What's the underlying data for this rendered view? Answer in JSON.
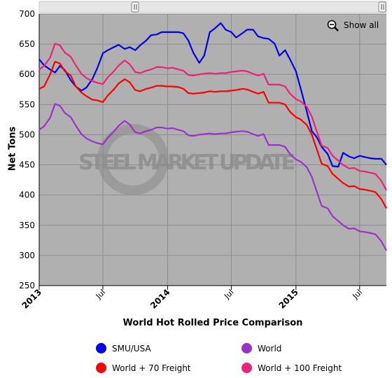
{
  "chart_data": {
    "type": "line",
    "title": "World Hot Rolled Price Comparison",
    "xlabel": "",
    "ylabel": "Net Tons",
    "ylim": [
      250,
      700
    ],
    "yticks": [
      250,
      300,
      350,
      400,
      450,
      500,
      550,
      600,
      650,
      700
    ],
    "x_start": "2013-01-01",
    "x_end": "2015-09-15",
    "xticks": [
      {
        "date": "2013-01-01",
        "label": "2013",
        "bold": true
      },
      {
        "date": "2013-07-01",
        "label": "Jul",
        "bold": false
      },
      {
        "date": "2014-01-01",
        "label": "2014",
        "bold": true
      },
      {
        "date": "2014-07-01",
        "label": "Jul",
        "bold": false
      },
      {
        "date": "2015-01-01",
        "label": "2015",
        "bold": true
      },
      {
        "date": "2015-07-01",
        "label": "Jul",
        "bold": false
      }
    ],
    "grid": true,
    "plot_background": "#b0b0b0",
    "watermark": "STEEL MARKET UPDATE",
    "series": [
      {
        "name": "SMU/USA",
        "color": "#0000ee",
        "points": [
          [
            "2013-01-01",
            625
          ],
          [
            "2013-01-15",
            615
          ],
          [
            "2013-02-01",
            608
          ],
          [
            "2013-02-15",
            603
          ],
          [
            "2013-03-01",
            614
          ],
          [
            "2013-03-15",
            607
          ],
          [
            "2013-04-01",
            590
          ],
          [
            "2013-04-15",
            580
          ],
          [
            "2013-05-01",
            573
          ],
          [
            "2013-05-15",
            578
          ],
          [
            "2013-06-01",
            592
          ],
          [
            "2013-06-15",
            610
          ],
          [
            "2013-07-01",
            635
          ],
          [
            "2013-07-15",
            640
          ],
          [
            "2013-08-01",
            645
          ],
          [
            "2013-08-15",
            649
          ],
          [
            "2013-09-01",
            642
          ],
          [
            "2013-09-15",
            645
          ],
          [
            "2013-10-01",
            640
          ],
          [
            "2013-10-15",
            648
          ],
          [
            "2013-11-01",
            656
          ],
          [
            "2013-11-15",
            665
          ],
          [
            "2013-12-01",
            666
          ],
          [
            "2013-12-15",
            670
          ],
          [
            "2014-01-01",
            670
          ],
          [
            "2014-01-15",
            670
          ],
          [
            "2014-02-01",
            670
          ],
          [
            "2014-02-15",
            668
          ],
          [
            "2014-03-01",
            656
          ],
          [
            "2014-03-15",
            636
          ],
          [
            "2014-04-01",
            619
          ],
          [
            "2014-04-15",
            631
          ],
          [
            "2014-05-01",
            670
          ],
          [
            "2014-05-15",
            676
          ],
          [
            "2014-06-01",
            685
          ],
          [
            "2014-06-15",
            674
          ],
          [
            "2014-07-01",
            670
          ],
          [
            "2014-07-15",
            661
          ],
          [
            "2014-08-01",
            668
          ],
          [
            "2014-08-15",
            674
          ],
          [
            "2014-09-01",
            674
          ],
          [
            "2014-09-15",
            663
          ],
          [
            "2014-10-01",
            660
          ],
          [
            "2014-10-15",
            659
          ],
          [
            "2014-11-01",
            651
          ],
          [
            "2014-11-15",
            631
          ],
          [
            "2014-12-01",
            640
          ],
          [
            "2014-12-15",
            625
          ],
          [
            "2015-01-01",
            605
          ],
          [
            "2015-01-15",
            575
          ],
          [
            "2015-02-01",
            538
          ],
          [
            "2015-02-15",
            506
          ],
          [
            "2015-03-01",
            496
          ],
          [
            "2015-03-15",
            480
          ],
          [
            "2015-04-01",
            468
          ],
          [
            "2015-04-15",
            448
          ],
          [
            "2015-05-01",
            447
          ],
          [
            "2015-05-15",
            470
          ],
          [
            "2015-06-01",
            464
          ],
          [
            "2015-06-15",
            461
          ],
          [
            "2015-07-01",
            465
          ],
          [
            "2015-07-15",
            463
          ],
          [
            "2015-08-01",
            461
          ],
          [
            "2015-08-15",
            460
          ],
          [
            "2015-09-01",
            460
          ],
          [
            "2015-09-15",
            450
          ]
        ]
      },
      {
        "name": "World + 70 Freight",
        "color": "#ff0000",
        "points": [
          [
            "2013-01-01",
            576
          ],
          [
            "2013-01-15",
            580
          ],
          [
            "2013-02-01",
            600
          ],
          [
            "2013-02-15",
            621
          ],
          [
            "2013-03-01",
            618
          ],
          [
            "2013-03-15",
            605
          ],
          [
            "2013-04-01",
            598
          ],
          [
            "2013-04-15",
            580
          ],
          [
            "2013-05-01",
            570
          ],
          [
            "2013-05-15",
            564
          ],
          [
            "2013-06-01",
            558
          ],
          [
            "2013-06-15",
            557
          ],
          [
            "2013-07-01",
            554
          ],
          [
            "2013-07-15",
            565
          ],
          [
            "2013-08-01",
            575
          ],
          [
            "2013-08-15",
            585
          ],
          [
            "2013-09-01",
            592
          ],
          [
            "2013-09-15",
            587
          ],
          [
            "2013-10-01",
            574
          ],
          [
            "2013-10-15",
            572
          ],
          [
            "2013-11-01",
            576
          ],
          [
            "2013-11-15",
            578
          ],
          [
            "2013-12-01",
            581
          ],
          [
            "2013-12-15",
            581
          ],
          [
            "2014-01-01",
            580
          ],
          [
            "2014-01-15",
            580
          ],
          [
            "2014-02-01",
            579
          ],
          [
            "2014-02-15",
            576
          ],
          [
            "2014-03-01",
            569
          ],
          [
            "2014-03-15",
            568
          ],
          [
            "2014-04-01",
            569
          ],
          [
            "2014-04-15",
            570
          ],
          [
            "2014-05-01",
            572
          ],
          [
            "2014-05-15",
            571
          ],
          [
            "2014-06-01",
            572
          ],
          [
            "2014-06-15",
            572
          ],
          [
            "2014-07-01",
            573
          ],
          [
            "2014-07-15",
            574
          ],
          [
            "2014-08-01",
            576
          ],
          [
            "2014-08-15",
            575
          ],
          [
            "2014-09-01",
            571
          ],
          [
            "2014-09-15",
            568
          ],
          [
            "2014-10-01",
            571
          ],
          [
            "2014-10-15",
            553
          ],
          [
            "2014-11-01",
            553
          ],
          [
            "2014-11-15",
            553
          ],
          [
            "2014-12-01",
            550
          ],
          [
            "2014-12-15",
            538
          ],
          [
            "2015-01-01",
            529
          ],
          [
            "2015-01-15",
            525
          ],
          [
            "2015-02-01",
            516
          ],
          [
            "2015-02-15",
            500
          ],
          [
            "2015-03-01",
            476
          ],
          [
            "2015-03-15",
            452
          ],
          [
            "2015-04-01",
            448
          ],
          [
            "2015-04-15",
            435
          ],
          [
            "2015-05-01",
            427
          ],
          [
            "2015-05-15",
            420
          ],
          [
            "2015-06-01",
            414
          ],
          [
            "2015-06-15",
            415
          ],
          [
            "2015-07-01",
            410
          ],
          [
            "2015-07-15",
            409
          ],
          [
            "2015-08-01",
            407
          ],
          [
            "2015-08-15",
            405
          ],
          [
            "2015-09-01",
            393
          ],
          [
            "2015-09-15",
            378
          ]
        ]
      },
      {
        "name": "World",
        "color": "#9933cc",
        "points": [
          [
            "2013-01-01",
            508
          ],
          [
            "2013-01-15",
            514
          ],
          [
            "2013-02-01",
            528
          ],
          [
            "2013-02-15",
            551
          ],
          [
            "2013-03-01",
            548
          ],
          [
            "2013-03-15",
            536
          ],
          [
            "2013-04-01",
            529
          ],
          [
            "2013-04-15",
            515
          ],
          [
            "2013-05-01",
            501
          ],
          [
            "2013-05-15",
            494
          ],
          [
            "2013-06-01",
            489
          ],
          [
            "2013-06-15",
            486
          ],
          [
            "2013-07-01",
            484
          ],
          [
            "2013-07-15",
            495
          ],
          [
            "2013-08-01",
            505
          ],
          [
            "2013-08-15",
            515
          ],
          [
            "2013-09-01",
            523
          ],
          [
            "2013-09-15",
            517
          ],
          [
            "2013-10-01",
            504
          ],
          [
            "2013-10-15",
            502
          ],
          [
            "2013-11-01",
            506
          ],
          [
            "2013-11-15",
            508
          ],
          [
            "2013-12-01",
            512
          ],
          [
            "2013-12-15",
            512
          ],
          [
            "2014-01-01",
            510
          ],
          [
            "2014-01-15",
            511
          ],
          [
            "2014-02-01",
            508
          ],
          [
            "2014-02-15",
            506
          ],
          [
            "2014-03-01",
            499
          ],
          [
            "2014-03-15",
            498
          ],
          [
            "2014-04-01",
            500
          ],
          [
            "2014-04-15",
            501
          ],
          [
            "2014-05-01",
            502
          ],
          [
            "2014-05-15",
            501
          ],
          [
            "2014-06-01",
            502
          ],
          [
            "2014-06-15",
            502
          ],
          [
            "2014-07-01",
            504
          ],
          [
            "2014-07-15",
            505
          ],
          [
            "2014-08-01",
            506
          ],
          [
            "2014-08-15",
            505
          ],
          [
            "2014-09-01",
            501
          ],
          [
            "2014-09-15",
            498
          ],
          [
            "2014-10-01",
            501
          ],
          [
            "2014-10-15",
            483
          ],
          [
            "2014-11-01",
            483
          ],
          [
            "2014-11-15",
            483
          ],
          [
            "2014-12-01",
            480
          ],
          [
            "2014-12-15",
            468
          ],
          [
            "2015-01-01",
            459
          ],
          [
            "2015-01-15",
            455
          ],
          [
            "2015-02-01",
            446
          ],
          [
            "2015-02-15",
            430
          ],
          [
            "2015-03-01",
            406
          ],
          [
            "2015-03-15",
            382
          ],
          [
            "2015-04-01",
            378
          ],
          [
            "2015-04-15",
            365
          ],
          [
            "2015-05-01",
            357
          ],
          [
            "2015-05-15",
            350
          ],
          [
            "2015-06-01",
            344
          ],
          [
            "2015-06-15",
            345
          ],
          [
            "2015-07-01",
            340
          ],
          [
            "2015-07-15",
            339
          ],
          [
            "2015-08-01",
            337
          ],
          [
            "2015-08-15",
            335
          ],
          [
            "2015-09-01",
            323
          ],
          [
            "2015-09-15",
            308
          ]
        ]
      },
      {
        "name": "World + 100 Freight",
        "color": "#ee2277",
        "points": [
          [
            "2013-01-01",
            608
          ],
          [
            "2013-01-15",
            614
          ],
          [
            "2013-02-01",
            628
          ],
          [
            "2013-02-15",
            651
          ],
          [
            "2013-03-01",
            648
          ],
          [
            "2013-03-15",
            636
          ],
          [
            "2013-04-01",
            629
          ],
          [
            "2013-04-15",
            615
          ],
          [
            "2013-05-01",
            601
          ],
          [
            "2013-05-15",
            594
          ],
          [
            "2013-06-01",
            589
          ],
          [
            "2013-06-15",
            586
          ],
          [
            "2013-07-01",
            584
          ],
          [
            "2013-07-15",
            595
          ],
          [
            "2013-08-01",
            605
          ],
          [
            "2013-08-15",
            615
          ],
          [
            "2013-09-01",
            623
          ],
          [
            "2013-09-15",
            617
          ],
          [
            "2013-10-01",
            604
          ],
          [
            "2013-10-15",
            602
          ],
          [
            "2013-11-01",
            606
          ],
          [
            "2013-11-15",
            608
          ],
          [
            "2013-12-01",
            612
          ],
          [
            "2013-12-15",
            612
          ],
          [
            "2014-01-01",
            610
          ],
          [
            "2014-01-15",
            611
          ],
          [
            "2014-02-01",
            608
          ],
          [
            "2014-02-15",
            606
          ],
          [
            "2014-03-01",
            599
          ],
          [
            "2014-03-15",
            598
          ],
          [
            "2014-04-01",
            600
          ],
          [
            "2014-04-15",
            601
          ],
          [
            "2014-05-01",
            602
          ],
          [
            "2014-05-15",
            601
          ],
          [
            "2014-06-01",
            602
          ],
          [
            "2014-06-15",
            602
          ],
          [
            "2014-07-01",
            604
          ],
          [
            "2014-07-15",
            605
          ],
          [
            "2014-08-01",
            606
          ],
          [
            "2014-08-15",
            605
          ],
          [
            "2014-09-01",
            601
          ],
          [
            "2014-09-15",
            598
          ],
          [
            "2014-10-01",
            601
          ],
          [
            "2014-10-15",
            583
          ],
          [
            "2014-11-01",
            583
          ],
          [
            "2014-11-15",
            583
          ],
          [
            "2014-12-01",
            580
          ],
          [
            "2014-12-15",
            568
          ],
          [
            "2015-01-01",
            559
          ],
          [
            "2015-01-15",
            555
          ],
          [
            "2015-02-01",
            546
          ],
          [
            "2015-02-15",
            530
          ],
          [
            "2015-03-01",
            506
          ],
          [
            "2015-03-15",
            482
          ],
          [
            "2015-04-01",
            478
          ],
          [
            "2015-04-15",
            465
          ],
          [
            "2015-05-01",
            457
          ],
          [
            "2015-05-15",
            450
          ],
          [
            "2015-06-01",
            444
          ],
          [
            "2015-06-15",
            445
          ],
          [
            "2015-07-01",
            440
          ],
          [
            "2015-07-15",
            439
          ],
          [
            "2015-08-01",
            437
          ],
          [
            "2015-08-15",
            435
          ],
          [
            "2015-09-01",
            423
          ],
          [
            "2015-09-15",
            408
          ]
        ]
      }
    ]
  },
  "controls": {
    "show_all_label": "Show all",
    "zoom_icon": "zoom-out-magnifier-icon",
    "scrollbar_handle_icon": "double-bar-handle-icon"
  },
  "legend": {
    "items": [
      {
        "label": "SMU/USA",
        "color": "#0000ee"
      },
      {
        "label": "World",
        "color": "#9933cc"
      },
      {
        "label": "World + 70 Freight",
        "color": "#ff0000"
      },
      {
        "label": "World + 100 Freight",
        "color": "#ee2277"
      }
    ]
  }
}
